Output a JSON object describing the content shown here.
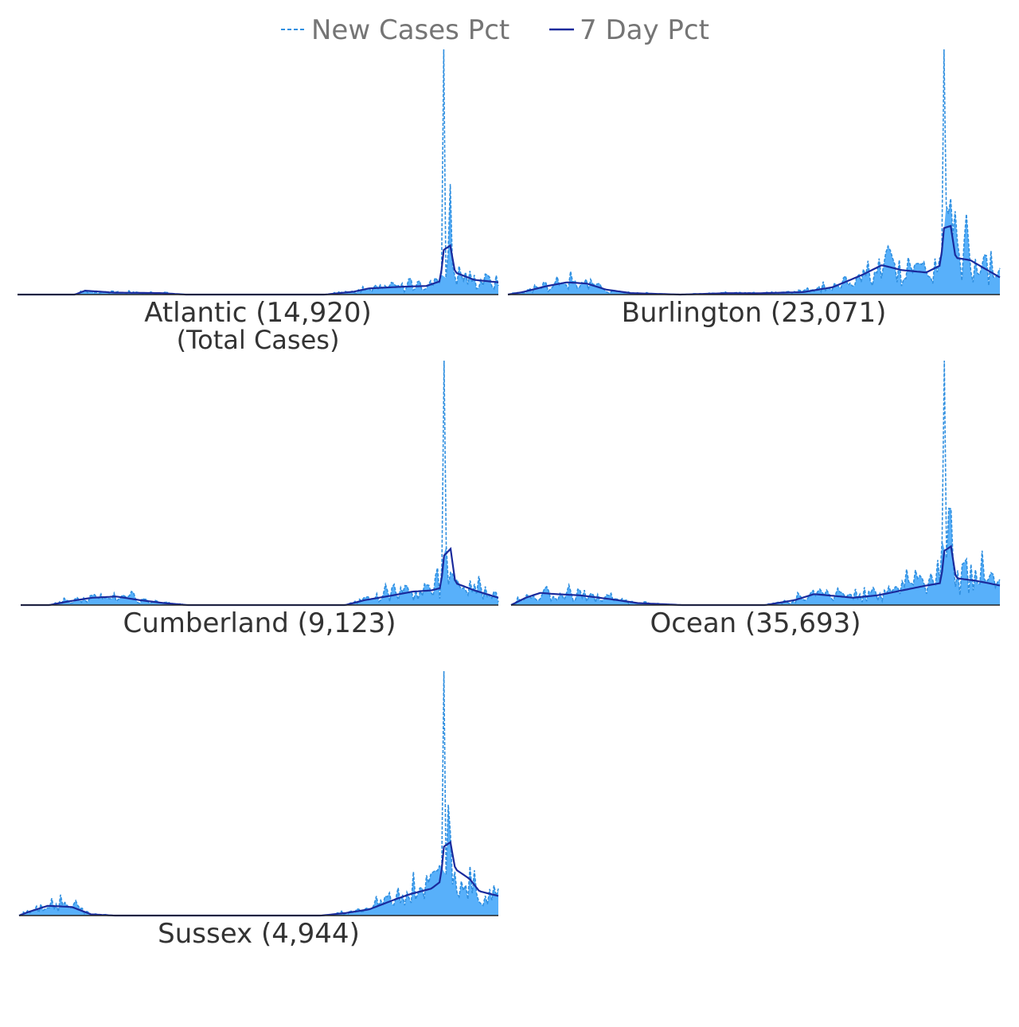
{
  "legend": {
    "new_cases_label": "New Cases Pct",
    "seven_day_label": "7 Day Pct"
  },
  "colors": {
    "new_cases": "#2f8fe0",
    "seven_day": "#1a2a9c",
    "fill": "#58b0fa",
    "baseline": "#222222"
  },
  "chart_data": {
    "type": "area",
    "x_axis": "day index (daily data, unlabeled)",
    "series_legend": [
      "New Cases Pct",
      "7 Day Pct"
    ],
    "panels": [
      {
        "name": "Atlantic",
        "label": "Atlantic (14,920)",
        "sublabel": "(Total Cases)",
        "spike": 100,
        "seven_day_profile": [
          [
            0,
            0
          ],
          [
            12,
            0
          ],
          [
            14,
            1.6
          ],
          [
            20,
            0.8
          ],
          [
            30,
            0.6
          ],
          [
            35,
            0
          ],
          [
            64,
            0
          ],
          [
            70,
            1.2
          ],
          [
            73,
            2.5
          ],
          [
            80,
            3.2
          ],
          [
            85,
            3.5
          ],
          [
            88,
            5.5
          ],
          [
            88.5,
            18
          ],
          [
            90,
            20
          ],
          [
            91,
            9
          ],
          [
            95,
            6
          ],
          [
            100,
            5
          ]
        ],
        "noise": 0.6
      },
      {
        "name": "Burlington",
        "label": "Burlington (23,071)",
        "sublabel": "",
        "spike": 100,
        "seven_day_profile": [
          [
            0,
            0
          ],
          [
            3,
            1
          ],
          [
            8,
            3.5
          ],
          [
            12,
            5
          ],
          [
            16,
            4.5
          ],
          [
            20,
            2
          ],
          [
            25,
            0.6
          ],
          [
            35,
            0
          ],
          [
            45,
            0.6
          ],
          [
            50,
            0.5
          ],
          [
            60,
            1
          ],
          [
            66,
            3
          ],
          [
            72,
            8
          ],
          [
            76,
            12
          ],
          [
            80,
            10
          ],
          [
            85,
            9
          ],
          [
            88,
            12
          ],
          [
            88.5,
            27
          ],
          [
            90,
            28
          ],
          [
            91,
            15
          ],
          [
            94,
            14
          ],
          [
            100,
            7
          ]
        ],
        "noise": 0.7
      },
      {
        "name": "Cumberland",
        "label": "Cumberland (9,123)",
        "sublabel": "",
        "spike": 100,
        "seven_day_profile": [
          [
            0,
            0
          ],
          [
            6,
            0
          ],
          [
            10,
            1.5
          ],
          [
            15,
            3
          ],
          [
            20,
            3.5
          ],
          [
            25,
            2
          ],
          [
            30,
            0.8
          ],
          [
            35,
            0
          ],
          [
            68,
            0
          ],
          [
            72,
            2
          ],
          [
            78,
            4
          ],
          [
            82,
            5.5
          ],
          [
            86,
            6
          ],
          [
            88,
            7
          ],
          [
            88.5,
            20
          ],
          [
            90,
            23
          ],
          [
            91,
            9
          ],
          [
            95,
            6
          ],
          [
            100,
            3
          ]
        ],
        "noise": 0.6
      },
      {
        "name": "Ocean",
        "label": "Ocean (35,693)",
        "sublabel": "",
        "spike": 100,
        "seven_day_profile": [
          [
            0,
            0
          ],
          [
            3,
            3
          ],
          [
            6,
            5
          ],
          [
            9,
            4.5
          ],
          [
            14,
            4
          ],
          [
            20,
            2.5
          ],
          [
            26,
            0.8
          ],
          [
            35,
            0
          ],
          [
            52,
            0
          ],
          [
            58,
            2
          ],
          [
            62,
            4.5
          ],
          [
            70,
            3
          ],
          [
            75,
            4
          ],
          [
            80,
            6
          ],
          [
            85,
            8
          ],
          [
            88,
            9
          ],
          [
            88.5,
            22
          ],
          [
            90,
            24
          ],
          [
            91,
            11
          ],
          [
            95,
            10
          ],
          [
            100,
            8
          ]
        ],
        "noise": 0.7
      },
      {
        "name": "Sussex",
        "label": "Sussex (4,944)",
        "sublabel": "",
        "spike": 100,
        "seven_day_profile": [
          [
            0,
            0
          ],
          [
            2,
            1.5
          ],
          [
            6,
            4
          ],
          [
            11,
            3.5
          ],
          [
            15,
            0.5
          ],
          [
            20,
            0
          ],
          [
            63,
            0
          ],
          [
            68,
            1
          ],
          [
            73,
            2.5
          ],
          [
            79,
            7
          ],
          [
            82,
            9
          ],
          [
            86,
            11
          ],
          [
            88,
            14
          ],
          [
            88.5,
            28
          ],
          [
            90,
            30
          ],
          [
            91,
            19
          ],
          [
            94,
            15
          ],
          [
            96,
            10
          ],
          [
            100,
            8
          ]
        ],
        "noise": 0.8
      }
    ]
  }
}
